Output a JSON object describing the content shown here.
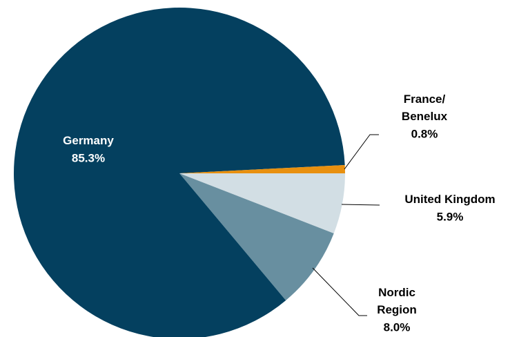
{
  "chart_data": {
    "type": "pie",
    "categories": [
      "United Kingdom",
      "Nordic\nRegion",
      "Germany",
      "France/\nBenelux"
    ],
    "values": [
      5.9,
      8.0,
      85.3,
      0.8
    ],
    "value_labels": [
      "5.9%",
      "8.0%",
      "85.3%",
      "0.8%"
    ],
    "colors": [
      "#d2dee4",
      "#688fa0",
      "#04405f",
      "#e8900f"
    ]
  }
}
